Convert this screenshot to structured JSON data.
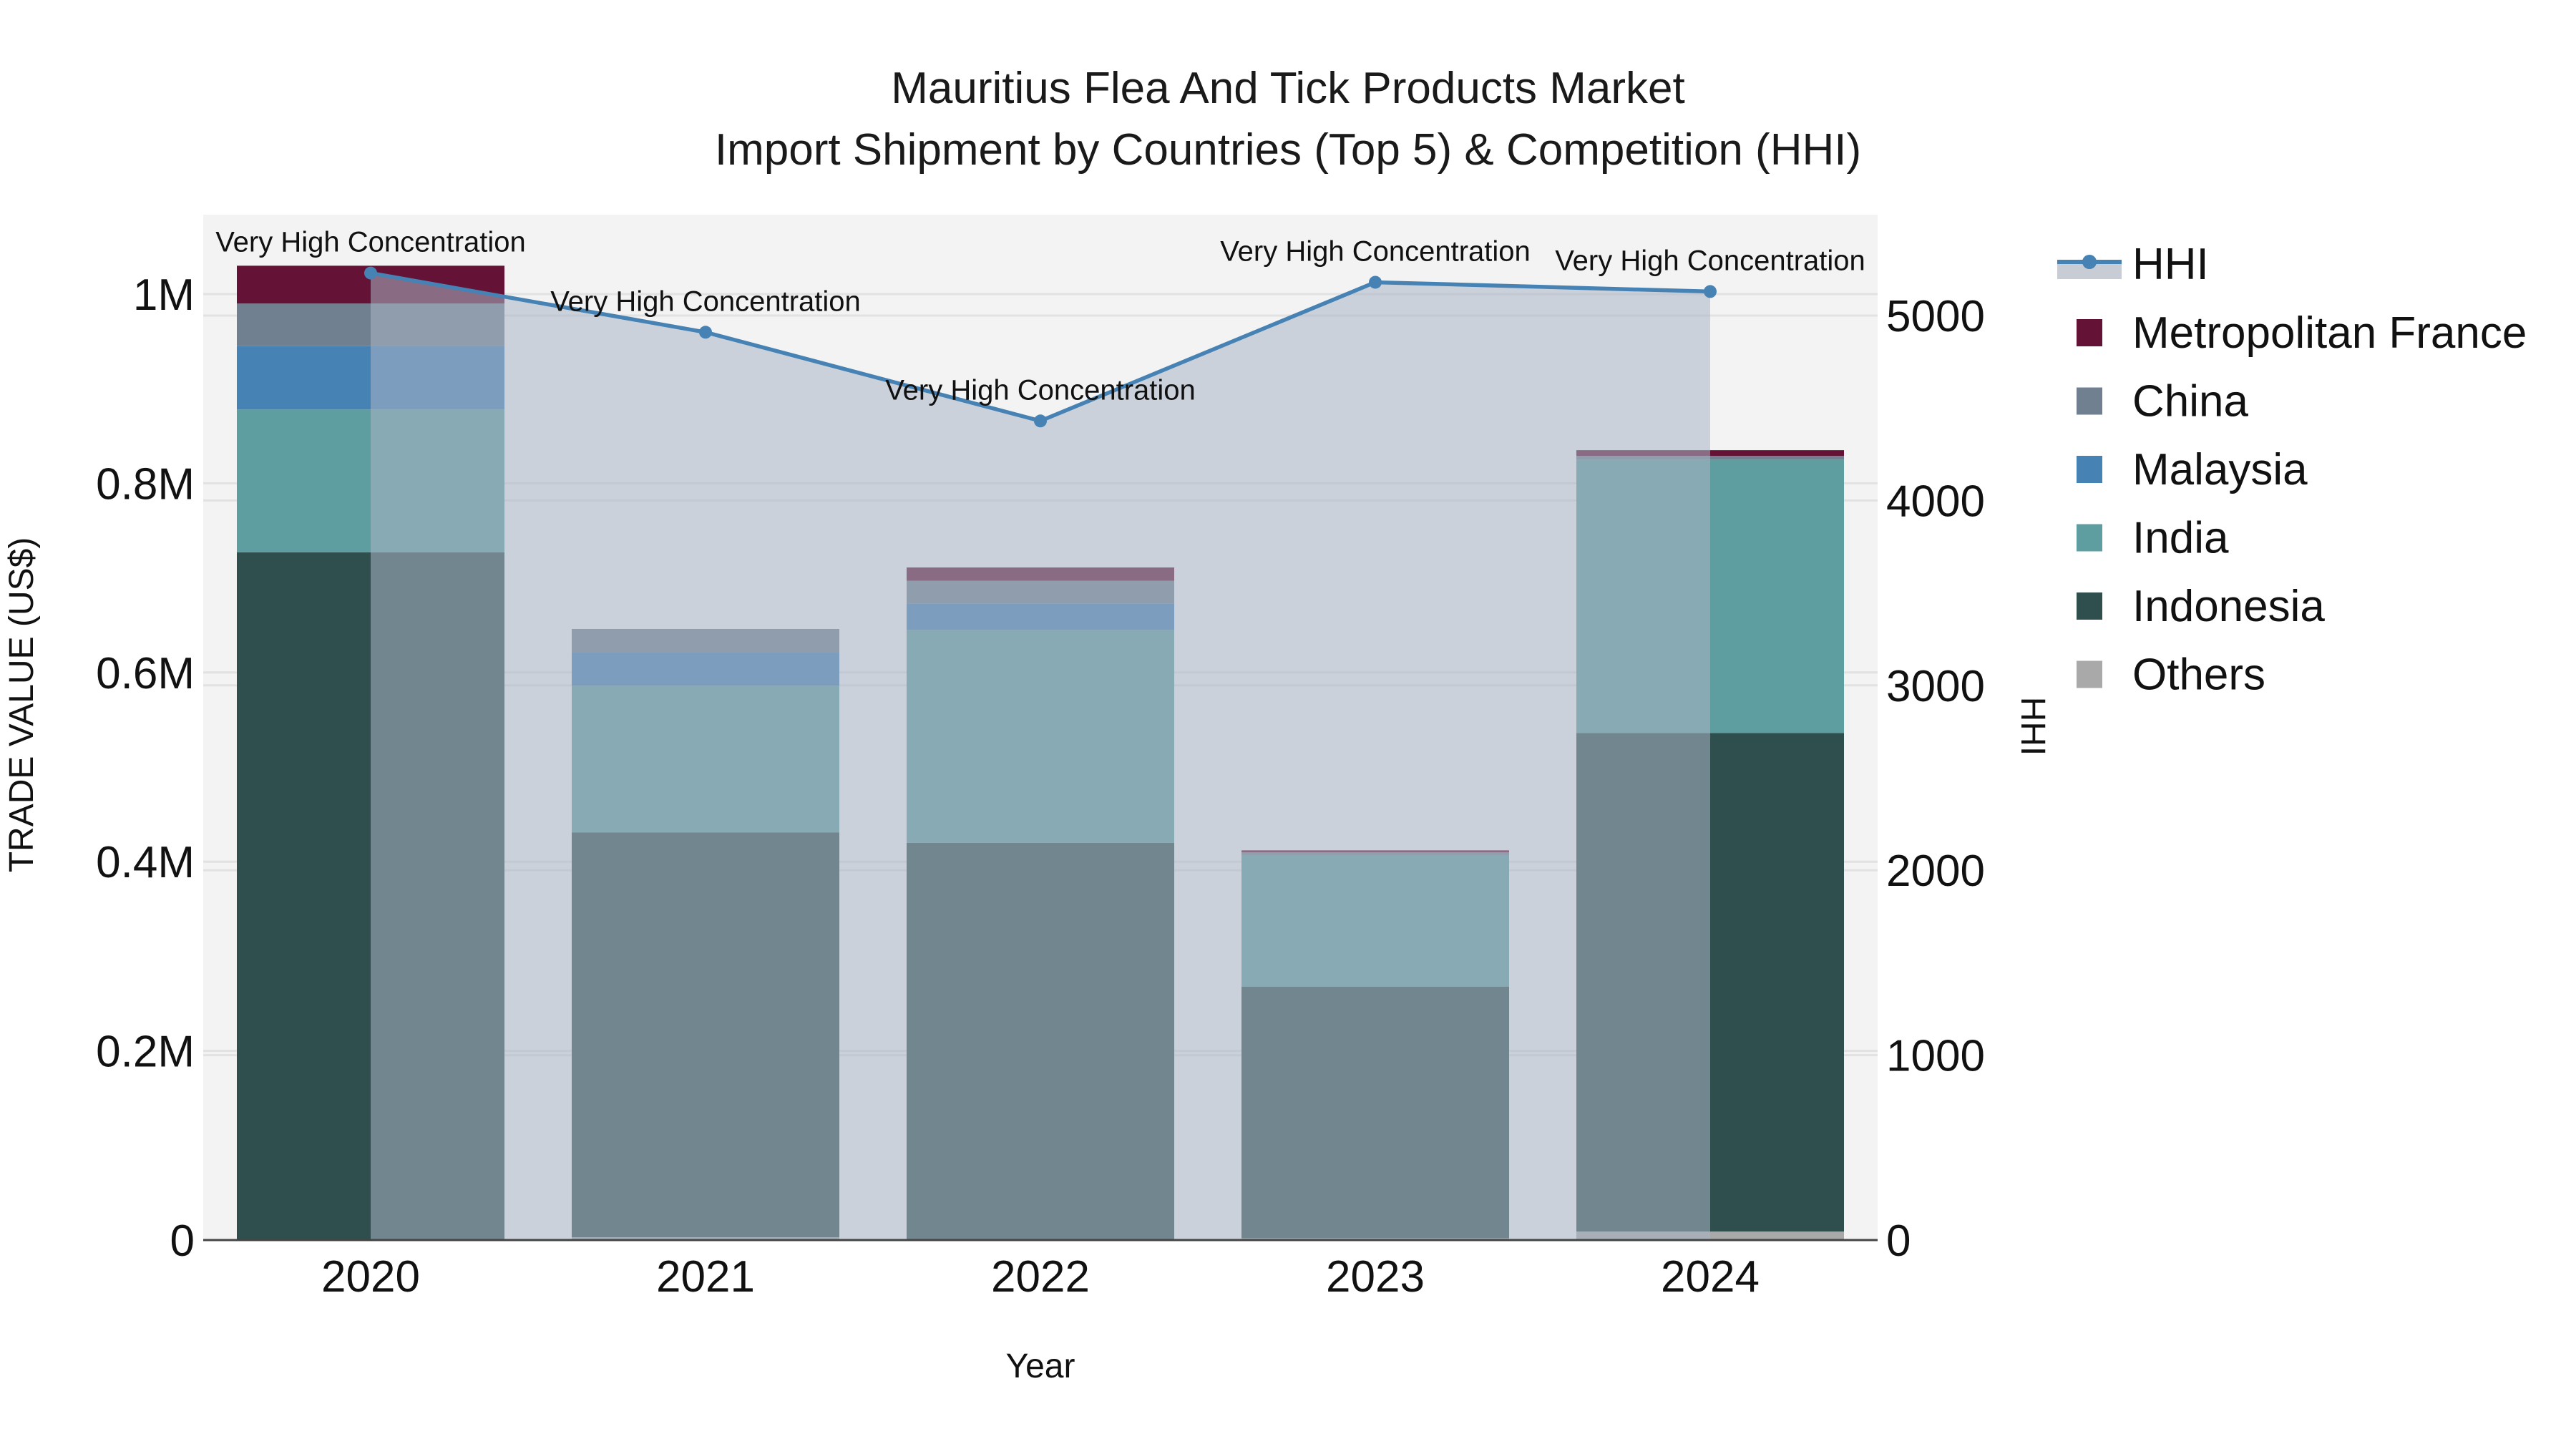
{
  "title": {
    "line1": "Mauritius Flea And Tick Products Market",
    "line2": "Import Shipment by Countries (Top 5) & Competition (HHI)"
  },
  "colors": {
    "Metropolitan France": "#641235",
    "China": "#708090",
    "Malaysia": "#4682b4",
    "India": "#5f9ea0",
    "Indonesia": "#2f4f4f",
    "Others": "#a9a9a9",
    "HHI": "#4682b4",
    "hhi_fill": "#c8cdd5",
    "plot_bg": "#f3f3f3"
  },
  "chart_data": {
    "type": "bar",
    "stacked": true,
    "title": "Mauritius Flea And Tick Products Market\nImport Shipment by Countries (Top 5) & Competition (HHI)",
    "xlabel": "Year",
    "ylabel": "TRADE VALUE (US$)",
    "y2label": "HHI",
    "categories": [
      "2020",
      "2021",
      "2022",
      "2023",
      "2024"
    ],
    "ylim": [
      0,
      1080000
    ],
    "y2lim": [
      0,
      5560
    ],
    "yticks": [
      "0",
      "0.2M",
      "0.4M",
      "0.6M",
      "0.8M",
      "1M"
    ],
    "y2ticks": [
      "0",
      "1000",
      "2000",
      "3000",
      "4000",
      "5000"
    ],
    "series": [
      {
        "name": "Others",
        "values": [
          0,
          3000,
          0,
          2000,
          9000
        ]
      },
      {
        "name": "Indonesia",
        "values": [
          727000,
          428000,
          420000,
          266000,
          527000
        ]
      },
      {
        "name": "India",
        "values": [
          151000,
          155000,
          225000,
          139000,
          289000
        ]
      },
      {
        "name": "Malaysia",
        "values": [
          67000,
          35000,
          28000,
          0,
          0
        ]
      },
      {
        "name": "China",
        "values": [
          45000,
          25000,
          24000,
          3000,
          4000
        ]
      },
      {
        "name": "Metropolitan France",
        "values": [
          40000,
          0,
          14000,
          2000,
          6000
        ]
      }
    ],
    "line": {
      "name": "HHI",
      "axis": "y2",
      "values": [
        5230,
        4910,
        4430,
        5180,
        5130
      ]
    },
    "annotations": [
      "Very High Concentration",
      "Very High Concentration",
      "Very High Concentration",
      "Very High Concentration",
      "Very High Concentration"
    ],
    "legend": [
      "HHI",
      "Metropolitan France",
      "China",
      "Malaysia",
      "India",
      "Indonesia",
      "Others"
    ],
    "legend_position": "right",
    "grid": true
  }
}
